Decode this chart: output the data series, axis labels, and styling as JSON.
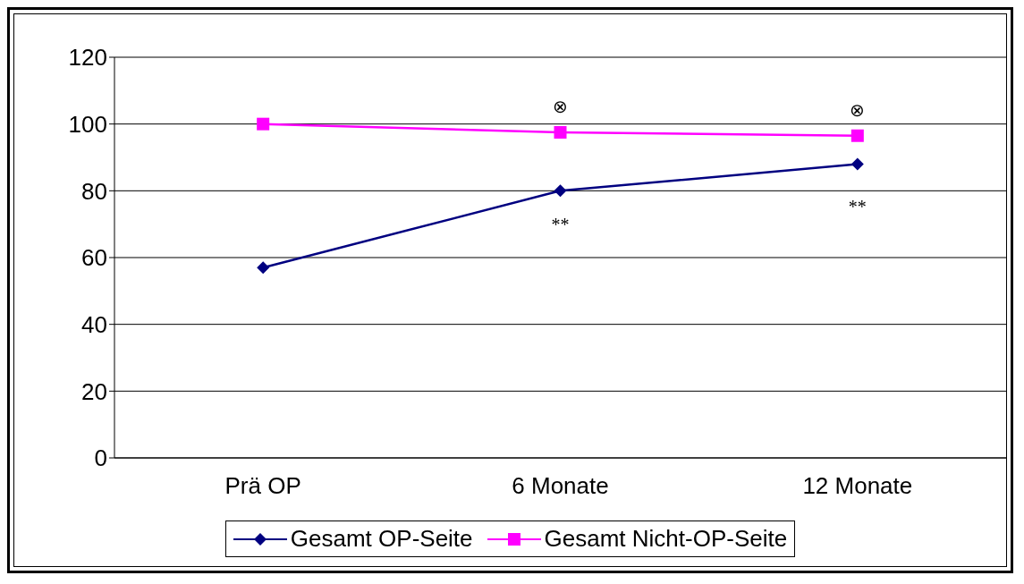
{
  "chart_data": {
    "type": "line",
    "categories": [
      "Prä OP",
      "6 Monate",
      "12 Monate"
    ],
    "series": [
      {
        "name": "Gesamt OP-Seite",
        "color": "#000080",
        "marker": "diamond",
        "values": [
          57,
          80,
          88
        ]
      },
      {
        "name": "Gesamt Nicht-OP-Seite",
        "color": "#ff00ff",
        "marker": "square",
        "values": [
          100,
          97.5,
          96.5
        ]
      }
    ],
    "ylim": [
      0,
      120
    ],
    "yticks": [
      0,
      20,
      40,
      60,
      80,
      100,
      120
    ],
    "grid": "y",
    "legend": "bottom",
    "annotations": [
      "⊗",
      "⊗",
      "**",
      "**"
    ]
  }
}
